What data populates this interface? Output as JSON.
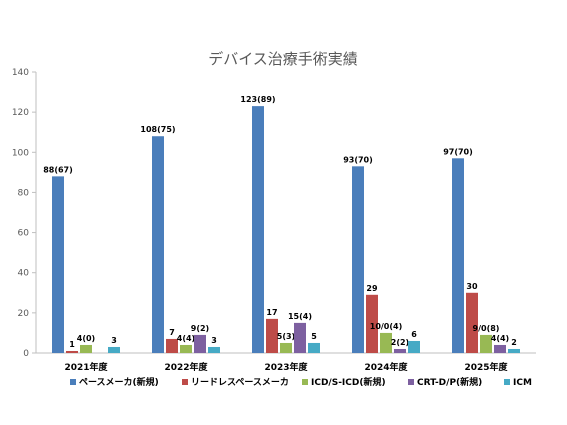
{
  "chart_data": {
    "type": "bar",
    "title": "デバイス治療手術実績",
    "categories": [
      "2021年度",
      "2022年度",
      "2023年度",
      "2024年度",
      "2025年度"
    ],
    "ylim": [
      0,
      140
    ],
    "yticks": [
      0,
      20,
      40,
      60,
      80,
      100,
      120,
      140
    ],
    "grid": false,
    "legend_position": "bottom",
    "series": [
      {
        "name": "ペースメーカ(新規)",
        "color": "#4a7ebb",
        "values": [
          88,
          108,
          123,
          93,
          97
        ],
        "labels": [
          "88(67)",
          "108(75)",
          "123(89)",
          "93(70)",
          "97(70)"
        ]
      },
      {
        "name": "リードレスペースメーカ",
        "color": "#be4b48",
        "values": [
          1,
          7,
          17,
          29,
          30
        ],
        "labels": [
          "1",
          "7",
          "17",
          "29",
          "30"
        ]
      },
      {
        "name": "ICD/S-ICD(新規)",
        "color": "#98b954",
        "values": [
          4,
          4,
          5,
          10,
          9
        ],
        "labels": [
          "4(0)",
          "4(4)",
          "5(3)",
          "10/0(4)",
          "9/0(8)"
        ]
      },
      {
        "name": "CRT-D/P(新規)",
        "color": "#7d60a0",
        "values": [
          0,
          9,
          15,
          2,
          4
        ],
        "labels": [
          "",
          "9(2)",
          "15(4)",
          "2(2)",
          "4(4)"
        ]
      },
      {
        "name": "ICM",
        "color": "#46aac5",
        "values": [
          3,
          3,
          5,
          6,
          2
        ],
        "labels": [
          "3",
          "3",
          "5",
          "6",
          "2"
        ]
      }
    ]
  }
}
